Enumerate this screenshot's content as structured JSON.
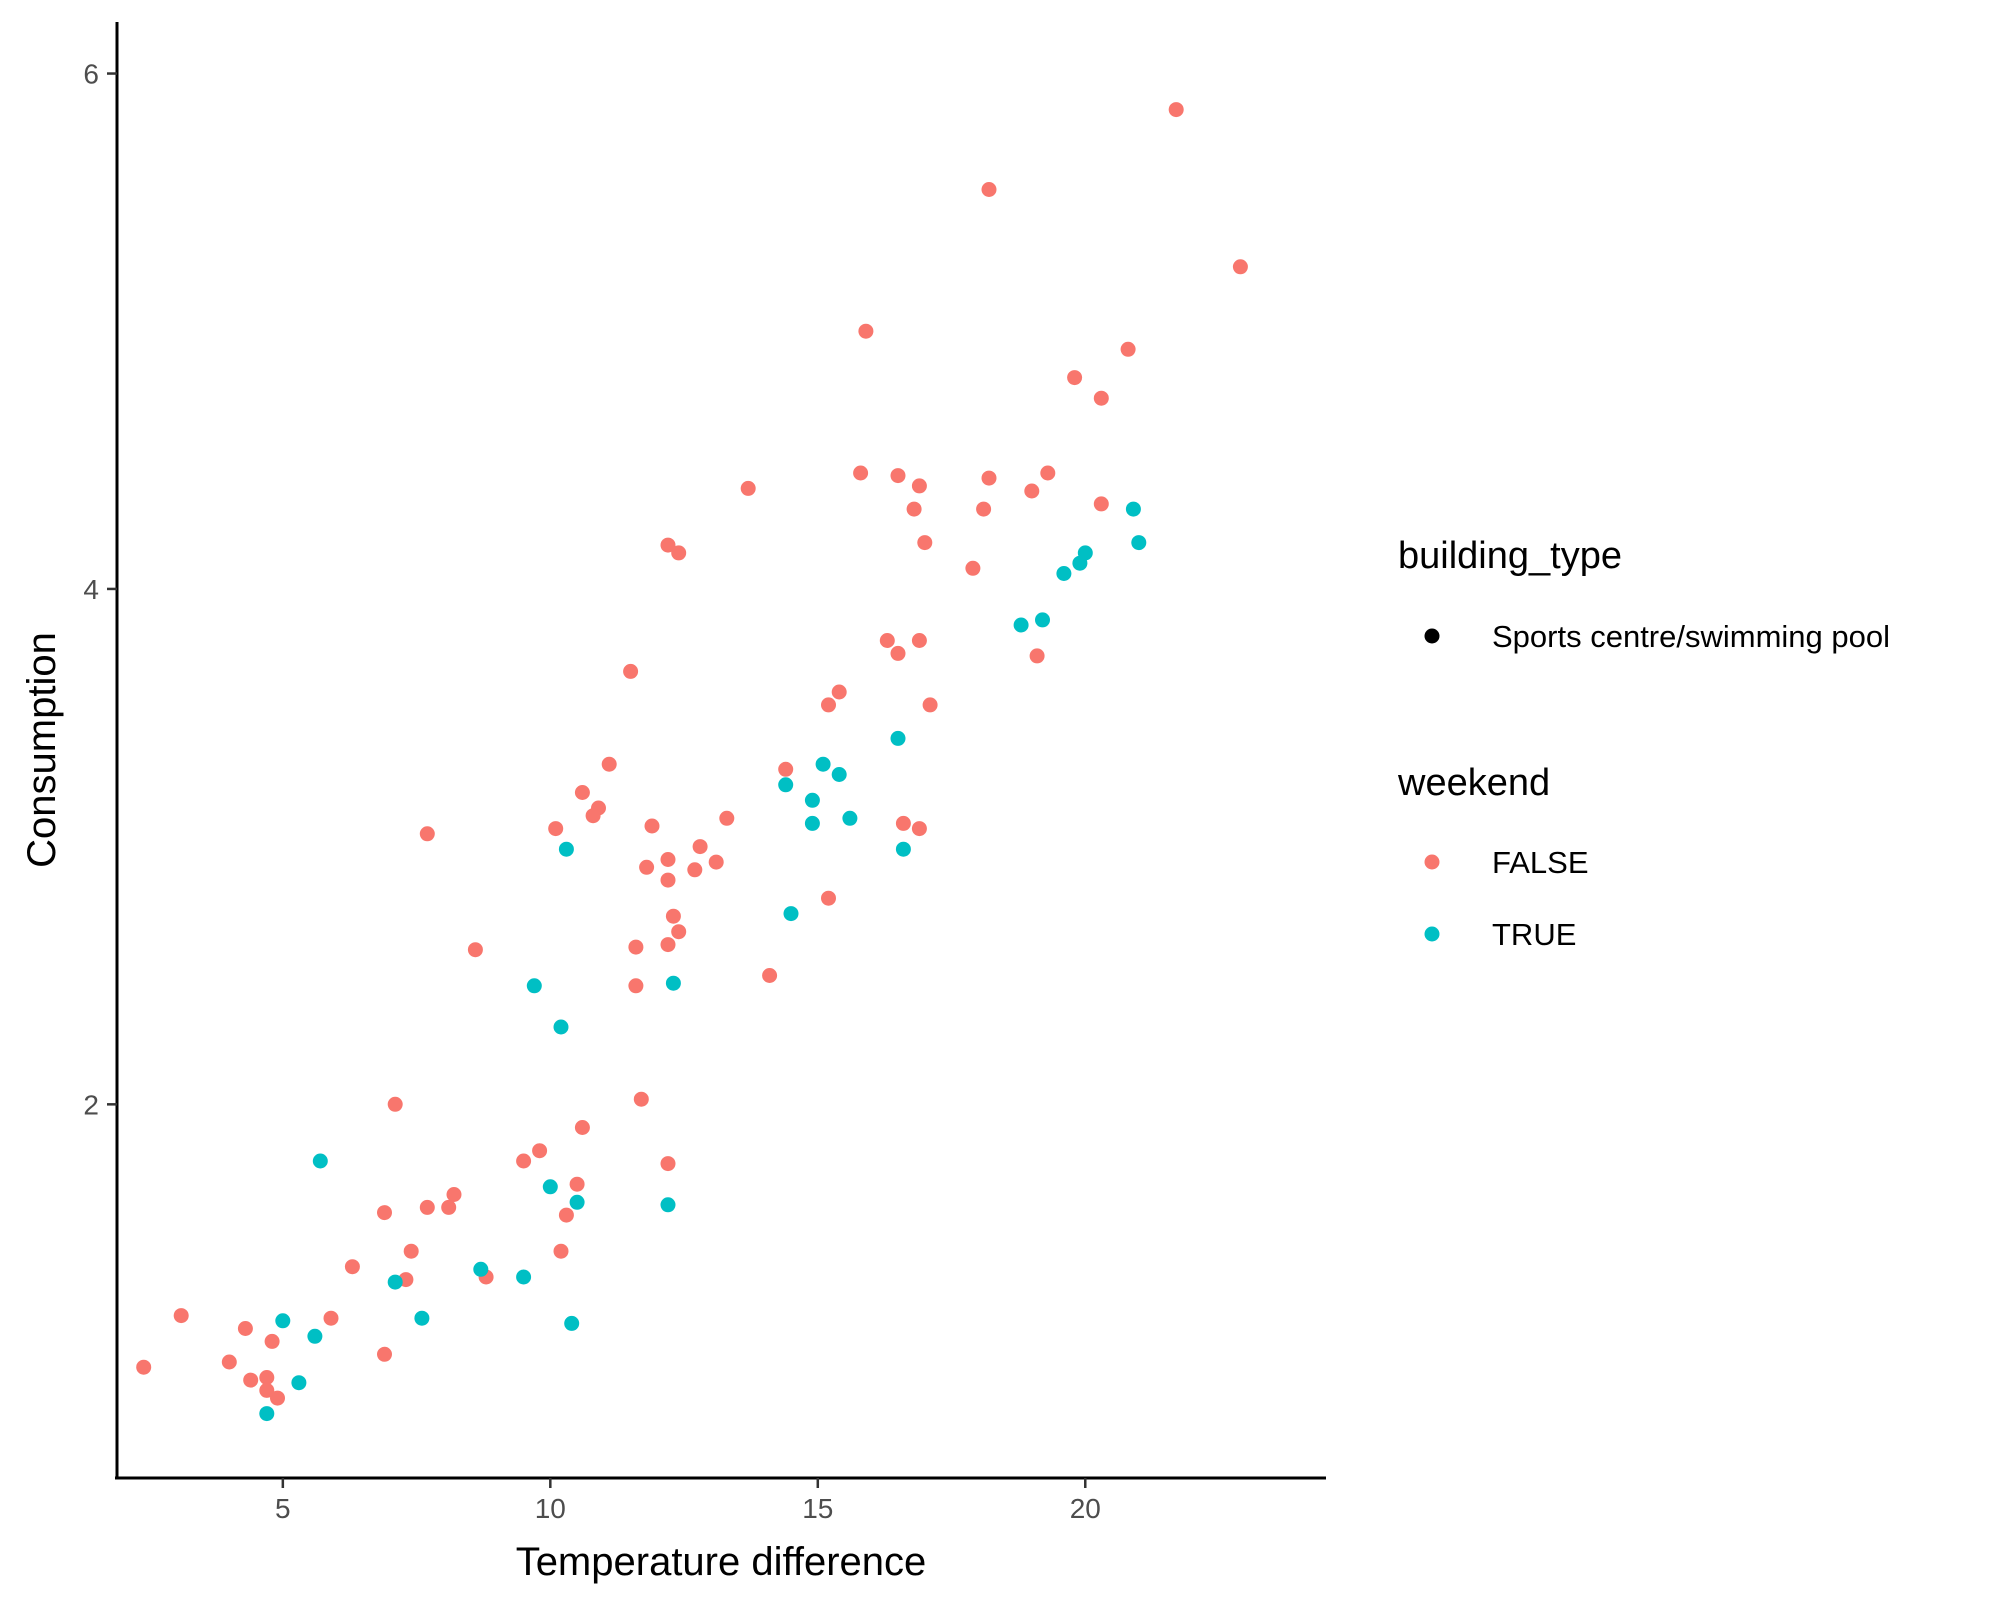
{
  "chart_data": {
    "type": "scatter",
    "xlabel": "Temperature difference",
    "ylabel": "Consumption",
    "xlim": [
      1.9,
      24.5
    ],
    "ylim": [
      0.55,
      6.2
    ],
    "xticks": [
      5,
      10,
      15,
      20
    ],
    "yticks": [
      2,
      4,
      6
    ],
    "grid": false,
    "legend_position": "right",
    "legends": [
      {
        "title": "building_type",
        "entries": [
          {
            "label": "Sports centre/swimming pool",
            "color": "#000000"
          }
        ]
      },
      {
        "title": "weekend",
        "entries": [
          {
            "label": "FALSE",
            "color": "#F8766D"
          },
          {
            "label": "TRUE",
            "color": "#00BFC4"
          }
        ]
      }
    ],
    "series": [
      {
        "name": "FALSE",
        "color": "#F8766D",
        "points": [
          [
            21.7,
            5.86
          ],
          [
            18.2,
            5.55
          ],
          [
            22.9,
            5.25
          ],
          [
            15.9,
            5.0
          ],
          [
            20.8,
            4.93
          ],
          [
            19.8,
            4.82
          ],
          [
            20.3,
            4.74
          ],
          [
            15.8,
            4.45
          ],
          [
            16.5,
            4.44
          ],
          [
            18.2,
            4.43
          ],
          [
            19.3,
            4.45
          ],
          [
            16.9,
            4.4
          ],
          [
            19.0,
            4.38
          ],
          [
            13.7,
            4.39
          ],
          [
            16.8,
            4.31
          ],
          [
            18.1,
            4.31
          ],
          [
            20.3,
            4.33
          ],
          [
            17.0,
            4.18
          ],
          [
            12.2,
            4.17
          ],
          [
            12.4,
            4.14
          ],
          [
            17.9,
            4.08
          ],
          [
            16.3,
            3.8
          ],
          [
            16.9,
            3.8
          ],
          [
            16.5,
            3.75
          ],
          [
            19.1,
            3.74
          ],
          [
            11.5,
            3.68
          ],
          [
            15.4,
            3.6
          ],
          [
            15.2,
            3.55
          ],
          [
            17.1,
            3.55
          ],
          [
            11.1,
            3.32
          ],
          [
            14.4,
            3.3
          ],
          [
            10.6,
            3.21
          ],
          [
            10.9,
            3.15
          ],
          [
            10.8,
            3.12
          ],
          [
            13.3,
            3.11
          ],
          [
            11.9,
            3.08
          ],
          [
            10.1,
            3.07
          ],
          [
            7.7,
            3.05
          ],
          [
            16.6,
            3.09
          ],
          [
            16.9,
            3.07
          ],
          [
            12.8,
            3.0
          ],
          [
            12.2,
            2.95
          ],
          [
            13.1,
            2.94
          ],
          [
            11.8,
            2.92
          ],
          [
            12.7,
            2.91
          ],
          [
            12.2,
            2.87
          ],
          [
            15.2,
            2.8
          ],
          [
            12.3,
            2.73
          ],
          [
            12.4,
            2.67
          ],
          [
            8.6,
            2.6
          ],
          [
            11.6,
            2.61
          ],
          [
            12.2,
            2.62
          ],
          [
            14.1,
            2.5
          ],
          [
            11.6,
            2.46
          ],
          [
            11.7,
            2.02
          ],
          [
            7.1,
            2.0
          ],
          [
            10.6,
            1.91
          ],
          [
            9.8,
            1.82
          ],
          [
            9.5,
            1.78
          ],
          [
            12.2,
            1.77
          ],
          [
            10.5,
            1.69
          ],
          [
            8.2,
            1.65
          ],
          [
            7.7,
            1.6
          ],
          [
            8.1,
            1.6
          ],
          [
            6.9,
            1.58
          ],
          [
            10.3,
            1.57
          ],
          [
            7.4,
            1.43
          ],
          [
            10.2,
            1.43
          ],
          [
            6.3,
            1.37
          ],
          [
            7.3,
            1.32
          ],
          [
            8.8,
            1.33
          ],
          [
            3.1,
            1.18
          ],
          [
            5.9,
            1.17
          ],
          [
            4.3,
            1.13
          ],
          [
            4.8,
            1.08
          ],
          [
            6.9,
            1.03
          ],
          [
            2.4,
            0.98
          ],
          [
            4.0,
            1.0
          ],
          [
            4.4,
            0.93
          ],
          [
            4.7,
            0.94
          ],
          [
            4.7,
            0.89
          ],
          [
            4.9,
            0.86
          ]
        ]
      },
      {
        "name": "TRUE",
        "color": "#00BFC4",
        "points": [
          [
            20.9,
            4.31
          ],
          [
            21.0,
            4.18
          ],
          [
            20.0,
            4.14
          ],
          [
            19.9,
            4.1
          ],
          [
            19.6,
            4.06
          ],
          [
            19.2,
            3.88
          ],
          [
            18.8,
            3.86
          ],
          [
            16.5,
            3.42
          ],
          [
            15.1,
            3.32
          ],
          [
            15.4,
            3.28
          ],
          [
            14.4,
            3.24
          ],
          [
            14.9,
            3.18
          ],
          [
            15.6,
            3.11
          ],
          [
            14.9,
            3.09
          ],
          [
            10.3,
            2.99
          ],
          [
            16.6,
            2.99
          ],
          [
            14.5,
            2.74
          ],
          [
            9.7,
            2.46
          ],
          [
            12.3,
            2.47
          ],
          [
            10.2,
            2.3
          ],
          [
            5.7,
            1.78
          ],
          [
            10.0,
            1.68
          ],
          [
            10.5,
            1.62
          ],
          [
            12.2,
            1.61
          ],
          [
            8.7,
            1.36
          ],
          [
            9.5,
            1.33
          ],
          [
            7.1,
            1.31
          ],
          [
            5.0,
            1.16
          ],
          [
            7.6,
            1.17
          ],
          [
            10.4,
            1.15
          ],
          [
            5.6,
            1.1
          ],
          [
            5.3,
            0.92
          ],
          [
            4.7,
            0.8
          ]
        ]
      }
    ]
  }
}
